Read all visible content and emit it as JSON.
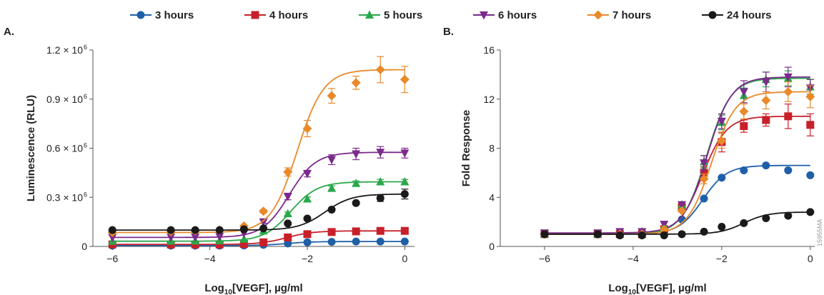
{
  "legend": [
    {
      "name": "3 hours",
      "color": "#1f5fa8",
      "marker": "circle"
    },
    {
      "name": "4 hours",
      "color": "#c8202a",
      "marker": "square"
    },
    {
      "name": "5 hours",
      "color": "#2aa84a",
      "marker": "triangle-up"
    },
    {
      "name": "6 hours",
      "color": "#7a2a8c",
      "marker": "triangle-down"
    },
    {
      "name": "7 hours",
      "color": "#e8892a",
      "marker": "diamond"
    },
    {
      "name": "24 hours",
      "color": "#1a1a1a",
      "marker": "circle"
    }
  ],
  "side_code": "15955MA",
  "chart_data": [
    {
      "panel": "A.",
      "type": "scatter",
      "xlabel_main": "Log",
      "xlabel_sub": "10",
      "xlabel_rest": "[VEGF], µg/ml",
      "ylabel": "Luminescence (RLU)",
      "xlim": [
        -6.4,
        0.2
      ],
      "ylim": [
        0,
        1200000
      ],
      "xticks": [
        -6,
        -4,
        -2,
        0
      ],
      "xtick_labels": [
        "−6",
        "−4",
        "−2",
        "0"
      ],
      "yticks": [
        0,
        300000,
        600000,
        900000,
        1200000
      ],
      "ytick_labels": [
        {
          "mant": "0",
          "exp": ""
        },
        {
          "mant": "0.3 × 10",
          "exp": "6"
        },
        {
          "mant": "0.6 × 10",
          "exp": "6"
        },
        {
          "mant": "0.9 × 10",
          "exp": "6"
        },
        {
          "mant": "1.2 × 10",
          "exp": "6"
        }
      ],
      "x": [
        -6,
        -4.8,
        -4.3,
        -3.8,
        -3.3,
        -2.9,
        -2.4,
        -2.0,
        -1.5,
        -1.0,
        -0.5,
        0
      ],
      "series": [
        {
          "name": "3 hours",
          "values": [
            5000,
            5000,
            5000,
            5000,
            6000,
            10000,
            18000,
            25000,
            28000,
            30000,
            30000,
            30000
          ],
          "errors": [
            0,
            0,
            0,
            0,
            0,
            0,
            0,
            0,
            0,
            0,
            0,
            0
          ]
        },
        {
          "name": "4 hours",
          "values": [
            12000,
            12000,
            12000,
            12000,
            15000,
            25000,
            55000,
            75000,
            88000,
            92000,
            95000,
            95000
          ],
          "errors": [
            0,
            0,
            0,
            0,
            0,
            0,
            0,
            5000,
            6000,
            6000,
            6000,
            5000
          ]
        },
        {
          "name": "5 hours",
          "values": [
            32000,
            33000,
            34000,
            35000,
            45000,
            95000,
            200000,
            290000,
            355000,
            385000,
            395000,
            395000
          ],
          "errors": [
            0,
            0,
            0,
            0,
            0,
            0,
            10000,
            12000,
            15000,
            15000,
            15000,
            15000
          ]
        },
        {
          "name": "6 hours",
          "values": [
            55000,
            56000,
            57000,
            60000,
            80000,
            150000,
            305000,
            445000,
            530000,
            565000,
            575000,
            570000
          ],
          "errors": [
            0,
            0,
            0,
            0,
            0,
            8000,
            20000,
            20000,
            30000,
            35000,
            35000,
            30000
          ]
        },
        {
          "name": "7 hours",
          "values": [
            85000,
            90000,
            95000,
            100000,
            125000,
            215000,
            455000,
            720000,
            920000,
            1000000,
            1080000,
            1020000
          ],
          "errors": [
            0,
            0,
            0,
            0,
            0,
            10000,
            25000,
            50000,
            45000,
            40000,
            80000,
            80000
          ]
        },
        {
          "name": "24 hours",
          "values": [
            100000,
            100000,
            100000,
            100000,
            105000,
            110000,
            140000,
            170000,
            225000,
            265000,
            295000,
            320000
          ],
          "errors": [
            0,
            0,
            0,
            0,
            0,
            0,
            0,
            0,
            0,
            10000,
            20000,
            30000
          ]
        }
      ]
    },
    {
      "panel": "B.",
      "type": "scatter",
      "xlabel_main": "Log",
      "xlabel_sub": "10",
      "xlabel_rest": "[VEGF], µg/ml",
      "ylabel": "Fold Response",
      "xlim": [
        -7.0,
        0.1
      ],
      "ylim": [
        0,
        16
      ],
      "xticks": [
        -6,
        -4,
        -2,
        0
      ],
      "xtick_labels": [
        "−6",
        "−4",
        "−2",
        "0"
      ],
      "yticks": [
        0,
        4,
        8,
        12,
        16
      ],
      "ytick_labels": [
        {
          "mant": "0",
          "exp": ""
        },
        {
          "mant": "4",
          "exp": ""
        },
        {
          "mant": "8",
          "exp": ""
        },
        {
          "mant": "12",
          "exp": ""
        },
        {
          "mant": "16",
          "exp": ""
        }
      ],
      "x": [
        -6,
        -4.8,
        -4.3,
        -3.8,
        -3.3,
        -2.9,
        -2.4,
        -2.0,
        -1.5,
        -1.0,
        -0.5,
        0
      ],
      "series": [
        {
          "name": "3 hours",
          "values": [
            1.0,
            1.0,
            1.0,
            1.0,
            1.2,
            2.2,
            3.9,
            5.6,
            6.2,
            6.6,
            6.2,
            5.8
          ],
          "errors": [
            0,
            0,
            0,
            0,
            0,
            0,
            0,
            0,
            0,
            0,
            0,
            0
          ]
        },
        {
          "name": "4 hours",
          "values": [
            1.0,
            1.0,
            1.0,
            1.0,
            1.4,
            3.2,
            6.0,
            8.5,
            9.8,
            10.3,
            10.6,
            9.9
          ],
          "errors": [
            0,
            0,
            0,
            0,
            0,
            0,
            0.5,
            0.8,
            0.5,
            0.5,
            1.0,
            0.9
          ]
        },
        {
          "name": "5 hours",
          "values": [
            1.0,
            1.0,
            1.1,
            1.2,
            1.7,
            3.4,
            6.9,
            10.1,
            12.3,
            13.6,
            13.7,
            13.0
          ],
          "errors": [
            0,
            0,
            0,
            0,
            0,
            0,
            0.5,
            0.6,
            0.6,
            0.6,
            0.6,
            0.6
          ]
        },
        {
          "name": "6 hours",
          "values": [
            1.1,
            1.1,
            1.2,
            1.2,
            1.8,
            3.4,
            6.8,
            10.2,
            12.6,
            13.4,
            13.8,
            12.9
          ],
          "errors": [
            0,
            0,
            0,
            0,
            0,
            0,
            0.6,
            0.6,
            0.9,
            0.8,
            0.8,
            0.7
          ]
        },
        {
          "name": "7 hours",
          "values": [
            1.0,
            1.0,
            1.0,
            1.0,
            1.4,
            2.9,
            5.5,
            8.6,
            11.0,
            11.9,
            12.6,
            12.2
          ],
          "errors": [
            0,
            0,
            0,
            0,
            0,
            0,
            0.4,
            0.6,
            0.6,
            0.7,
            0.8,
            0.9
          ]
        },
        {
          "name": "24 hours",
          "values": [
            1.0,
            1.0,
            0.9,
            0.9,
            0.9,
            1.0,
            1.2,
            1.6,
            1.9,
            2.3,
            2.5,
            2.8
          ],
          "errors": [
            0,
            0,
            0,
            0,
            0,
            0,
            0,
            0,
            0,
            0,
            0,
            0
          ]
        }
      ]
    }
  ]
}
